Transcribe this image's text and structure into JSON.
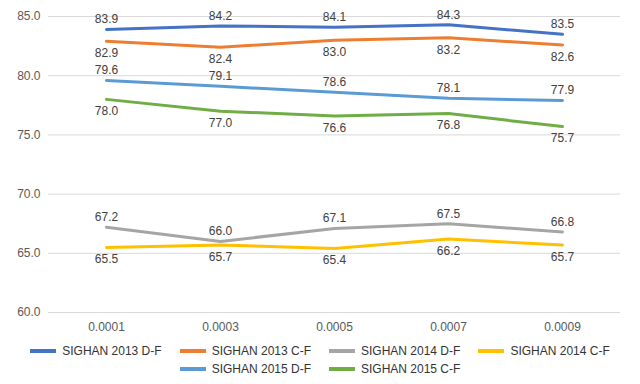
{
  "chart_data": {
    "type": "line",
    "categories": [
      "0.0001",
      "0.0003",
      "0.0005",
      "0.0007",
      "0.0009"
    ],
    "ylim": [
      60,
      85
    ],
    "yticks": [
      {
        "value": 60,
        "label": "60.0"
      },
      {
        "value": 65,
        "label": "65.0"
      },
      {
        "value": 70,
        "label": "70.0"
      },
      {
        "value": 75,
        "label": "75.0"
      },
      {
        "value": 80,
        "label": "80.0"
      },
      {
        "value": 85,
        "label": "85.0"
      }
    ],
    "grid": true,
    "legend": "bottom",
    "data_labels": true,
    "series": [
      {
        "name": "SIGHAN 2013 D-F",
        "color": "#4472c4",
        "values": [
          83.9,
          84.2,
          84.1,
          84.3,
          83.5
        ],
        "value_labels": [
          "83.9",
          "84.2",
          "84.1",
          "84.3",
          "83.5"
        ]
      },
      {
        "name": "SIGHAN 2013 C-F",
        "color": "#ed7d31",
        "values": [
          82.9,
          82.4,
          83.0,
          83.2,
          82.6
        ],
        "value_labels": [
          "82.9",
          "82.4",
          "83.0",
          "83.2",
          "82.6"
        ]
      },
      {
        "name": "SIGHAN 2014 D-F",
        "color": "#a5a5a5",
        "values": [
          67.2,
          66.0,
          67.1,
          67.5,
          66.8
        ],
        "value_labels": [
          "67.2",
          "66.0",
          "67.1",
          "67.5",
          "66.8"
        ]
      },
      {
        "name": "SIGHAN 2014 C-F",
        "color": "#ffc000",
        "values": [
          65.5,
          65.7,
          65.4,
          66.2,
          65.7
        ],
        "value_labels": [
          "65.5",
          "65.7",
          "65.4",
          "66.2",
          "65.7"
        ]
      },
      {
        "name": "SIGHAN 2015 D-F",
        "color": "#5b9bd5",
        "values": [
          79.6,
          79.1,
          78.6,
          78.1,
          77.9
        ],
        "value_labels": [
          "79.6",
          "79.1",
          "78.6",
          "78.1",
          "77.9"
        ]
      },
      {
        "name": "SIGHAN 2015 C-F",
        "color": "#70ad47",
        "values": [
          78.0,
          77.0,
          76.6,
          76.8,
          75.7
        ],
        "value_labels": [
          "78.0",
          "77.0",
          "76.6",
          "76.8",
          "75.7"
        ]
      }
    ]
  }
}
